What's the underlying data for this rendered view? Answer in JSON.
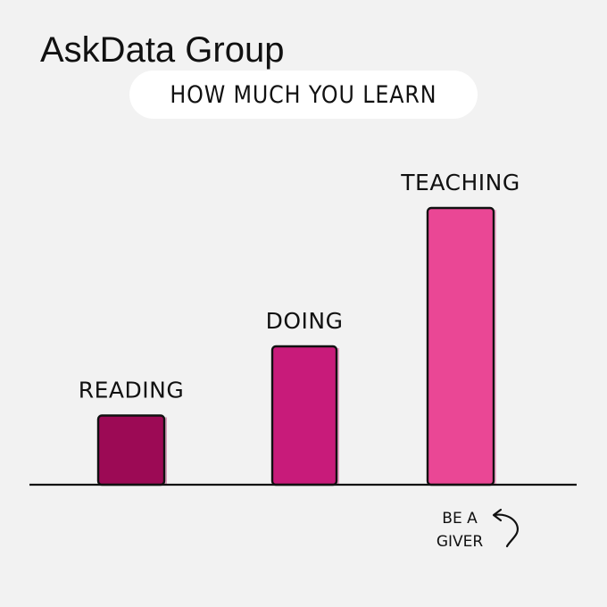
{
  "brand": {
    "name": "AskData Group"
  },
  "chart_data": {
    "type": "bar",
    "title": "HOW MUCH YOU LEARN",
    "categories": [
      "READING",
      "DOING",
      "TEACHING"
    ],
    "values": [
      1,
      2,
      4
    ],
    "colors": [
      "#9c0a55",
      "#c81b7a",
      "#ea4795"
    ],
    "ylim": [
      0,
      4
    ],
    "grid": false,
    "legend": "none",
    "annotation": {
      "line1": "BE A",
      "line2": "GIVER",
      "target": "TEACHING"
    }
  }
}
